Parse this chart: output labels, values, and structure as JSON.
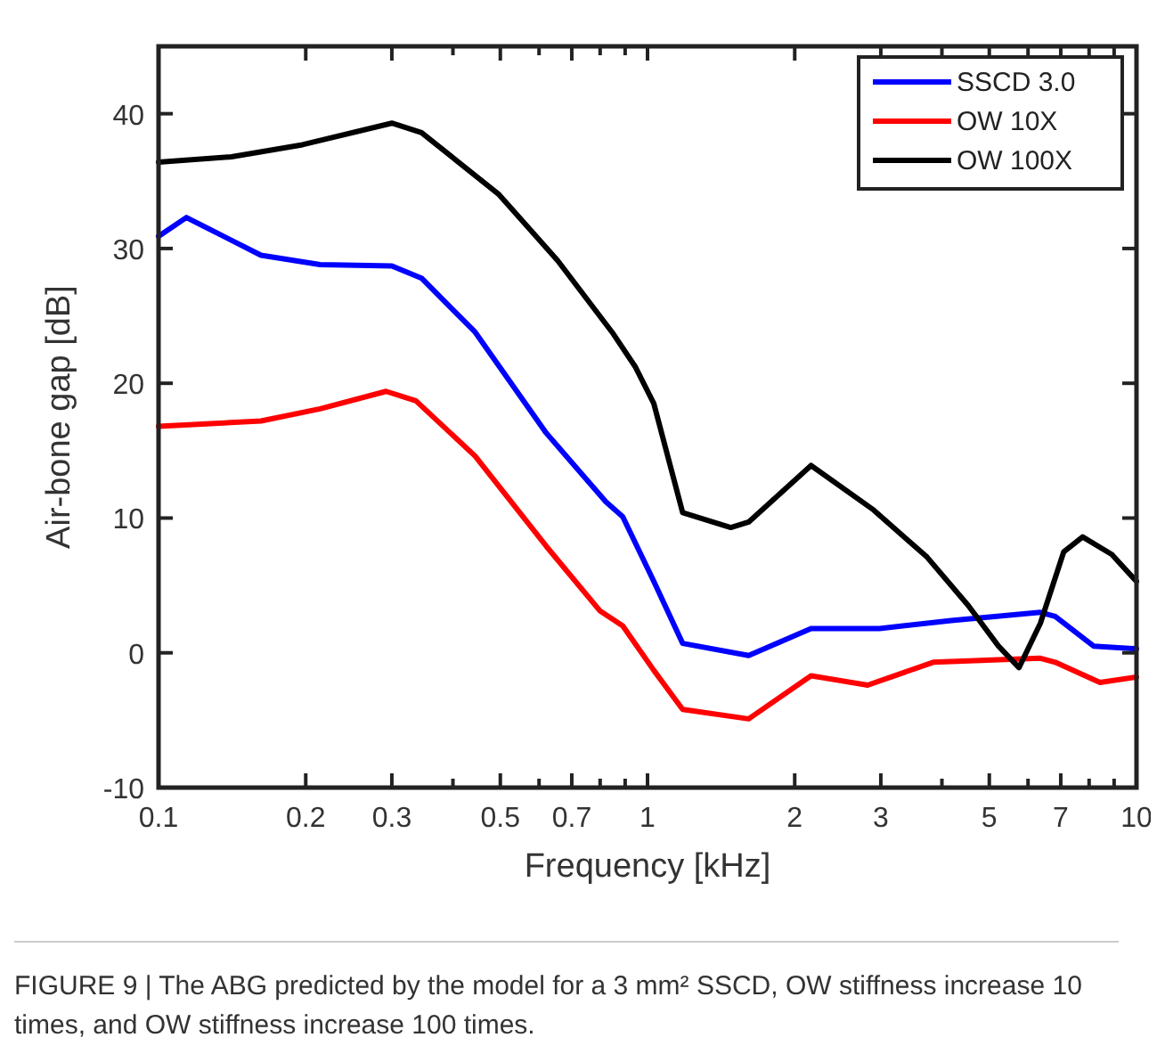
{
  "chart_data": {
    "type": "line",
    "xlabel": "Frequency [kHz]",
    "ylabel": "Air-bone gap [dB]",
    "log": "x",
    "xlim": [
      0.1,
      10
    ],
    "ylim": [
      -10,
      45
    ],
    "xticks": [
      0.1,
      0.2,
      0.3,
      {
        "value": 0.4,
        "label": null
      },
      0.5,
      {
        "value": 0.6,
        "label": null
      },
      0.7,
      {
        "value": 0.8,
        "label": null
      },
      {
        "value": 0.9,
        "label": null
      },
      1,
      2,
      3,
      {
        "value": 4,
        "label": null
      },
      5,
      {
        "value": 6,
        "label": null
      },
      7,
      {
        "value": 8,
        "label": null
      },
      {
        "value": 9,
        "label": null
      },
      10
    ],
    "yticks": [
      -10,
      0,
      10,
      20,
      30,
      40
    ],
    "grid": false,
    "legend": "top right",
    "marker": "none",
    "line_style": "solid",
    "series": [
      {
        "name": "SSCD 3.0",
        "color": "#0000ff",
        "x": [
          0.1,
          0.114,
          0.162,
          0.214,
          0.3,
          0.345,
          0.444,
          0.621,
          0.822,
          0.89,
          1.03,
          1.18,
          1.61,
          2.16,
          2.98,
          4.18,
          6.36,
          6.82,
          8.17,
          10
        ],
        "values": [
          30.9,
          32.3,
          29.5,
          28.8,
          28.7,
          27.8,
          23.8,
          16.3,
          11.2,
          10.1,
          5.3,
          0.7,
          -0.2,
          1.8,
          1.8,
          2.4,
          3.0,
          2.7,
          0.5,
          0.3
        ]
      },
      {
        "name": "OW 10X",
        "color": "#ff0000",
        "x": [
          0.1,
          0.162,
          0.214,
          0.292,
          0.336,
          0.444,
          0.621,
          0.8,
          0.89,
          1.03,
          1.18,
          1.61,
          2.16,
          2.82,
          3.84,
          6.36,
          6.82,
          8.42,
          10
        ],
        "values": [
          16.8,
          17.2,
          18.1,
          19.4,
          18.7,
          14.6,
          7.9,
          3.1,
          2.0,
          -1.3,
          -4.2,
          -4.9,
          -1.7,
          -2.4,
          -0.7,
          -0.4,
          -0.7,
          -2.2,
          -1.8
        ]
      },
      {
        "name": "OW 100X",
        "color": "#000000",
        "x": [
          0.1,
          0.141,
          0.197,
          0.3,
          0.345,
          0.497,
          0.655,
          0.846,
          0.945,
          1.03,
          1.18,
          1.48,
          1.61,
          2.16,
          2.9,
          3.73,
          4.53,
          5.22,
          5.75,
          6.36,
          7.1,
          7.76,
          8.9,
          10
        ],
        "values": [
          36.4,
          36.8,
          37.7,
          39.3,
          38.6,
          34.0,
          29.1,
          23.8,
          21.2,
          18.5,
          10.4,
          9.3,
          9.7,
          13.9,
          10.6,
          7.1,
          3.5,
          0.5,
          -1.1,
          2.2,
          7.5,
          8.6,
          7.3,
          5.3
        ]
      }
    ],
    "annotations": [
      "FIGURE 9 | The ABG predicted by the model for a 3 mm² SSCD, OW stiffness increase 10 times, and OW stiffness increase 100 times."
    ]
  }
}
